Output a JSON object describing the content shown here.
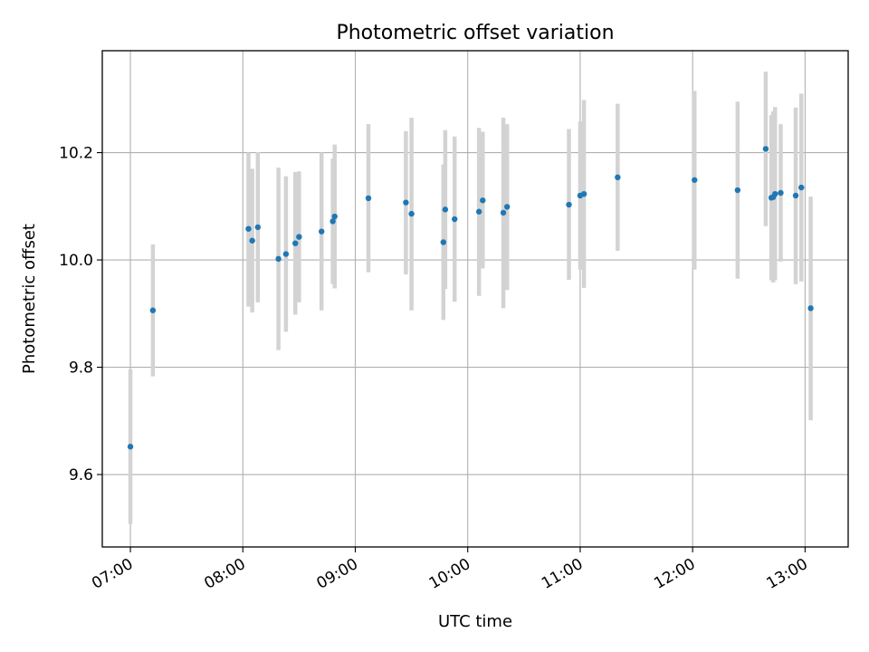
{
  "chart_data": {
    "type": "scatter",
    "title": "Photometric offset variation",
    "xlabel": "UTC time",
    "ylabel": "Photometric offset",
    "x_ticks": [
      "07:00",
      "08:00",
      "09:00",
      "10:00",
      "11:00",
      "12:00",
      "13:00"
    ],
    "y_ticks": [
      "9.6",
      "9.8",
      "10.0",
      "10.2"
    ],
    "xlim": [
      "06:45",
      "13:23"
    ],
    "ylim": [
      9.465,
      10.39
    ],
    "grid": true,
    "marker_color": "#1f77b4",
    "errorbar_color": "#d3d3d3",
    "series": [
      {
        "points": [
          {
            "x": "07:00",
            "y": 9.652,
            "low": 9.508,
            "high": 9.796
          },
          {
            "x": "07:12",
            "y": 9.906,
            "low": 9.783,
            "high": 10.029
          },
          {
            "x": "08:03",
            "y": 10.058,
            "low": 9.913,
            "high": 10.2
          },
          {
            "x": "08:05",
            "y": 10.036,
            "low": 9.902,
            "high": 10.17
          },
          {
            "x": "08:08",
            "y": 10.061,
            "low": 9.921,
            "high": 10.201
          },
          {
            "x": "08:19",
            "y": 10.002,
            "low": 9.832,
            "high": 10.172
          },
          {
            "x": "08:23",
            "y": 10.011,
            "low": 9.866,
            "high": 10.156
          },
          {
            "x": "08:28",
            "y": 10.031,
            "low": 9.898,
            "high": 10.164
          },
          {
            "x": "08:30",
            "y": 10.043,
            "low": 9.921,
            "high": 10.165
          },
          {
            "x": "08:42",
            "y": 10.053,
            "low": 9.906,
            "high": 10.2
          },
          {
            "x": "08:48",
            "y": 10.072,
            "low": 9.955,
            "high": 10.189
          },
          {
            "x": "08:49",
            "y": 10.081,
            "low": 9.947,
            "high": 10.215
          },
          {
            "x": "09:07",
            "y": 10.115,
            "low": 9.977,
            "high": 10.253
          },
          {
            "x": "09:27",
            "y": 10.107,
            "low": 9.973,
            "high": 10.24
          },
          {
            "x": "09:30",
            "y": 10.086,
            "low": 9.906,
            "high": 10.265
          },
          {
            "x": "09:47",
            "y": 10.033,
            "low": 9.888,
            "high": 10.178
          },
          {
            "x": "09:48",
            "y": 10.094,
            "low": 9.946,
            "high": 10.242
          },
          {
            "x": "09:53",
            "y": 10.076,
            "low": 9.922,
            "high": 10.23
          },
          {
            "x": "10:06",
            "y": 10.09,
            "low": 9.933,
            "high": 10.246
          },
          {
            "x": "10:08",
            "y": 10.111,
            "low": 9.984,
            "high": 10.239
          },
          {
            "x": "10:19",
            "y": 10.088,
            "low": 9.91,
            "high": 10.265
          },
          {
            "x": "10:21",
            "y": 10.099,
            "low": 9.944,
            "high": 10.253
          },
          {
            "x": "10:54",
            "y": 10.103,
            "low": 9.963,
            "high": 10.244
          },
          {
            "x": "11:00",
            "y": 10.12,
            "low": 9.982,
            "high": 10.258
          },
          {
            "x": "11:02",
            "y": 10.123,
            "low": 9.948,
            "high": 10.298
          },
          {
            "x": "11:20",
            "y": 10.154,
            "low": 10.017,
            "high": 10.291
          },
          {
            "x": "12:01",
            "y": 10.149,
            "low": 9.982,
            "high": 10.315
          },
          {
            "x": "12:24",
            "y": 10.13,
            "low": 9.965,
            "high": 10.295
          },
          {
            "x": "12:39",
            "y": 10.207,
            "low": 10.063,
            "high": 10.351
          },
          {
            "x": "12:42",
            "y": 10.116,
            "low": 9.962,
            "high": 10.27
          },
          {
            "x": "12:43",
            "y": 10.117,
            "low": 9.958,
            "high": 10.277
          },
          {
            "x": "12:44",
            "y": 10.123,
            "low": 9.962,
            "high": 10.285
          },
          {
            "x": "12:47",
            "y": 10.125,
            "low": 9.997,
            "high": 10.253
          },
          {
            "x": "12:55",
            "y": 10.12,
            "low": 9.955,
            "high": 10.284
          },
          {
            "x": "12:58",
            "y": 10.135,
            "low": 9.96,
            "high": 10.31
          },
          {
            "x": "13:03",
            "y": 9.91,
            "low": 9.701,
            "high": 10.118
          }
        ]
      }
    ]
  }
}
